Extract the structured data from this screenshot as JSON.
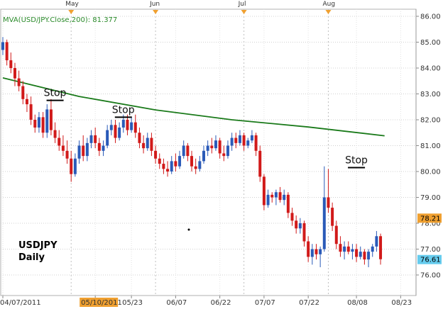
{
  "chart_data": {
    "type": "candlestick",
    "indicator_label": "MVA(USD/JPY.Close,200): 81.377",
    "ticker": "USDJPY",
    "timeframe": "Daily",
    "y_axis": {
      "min": 75.5,
      "max": 86.0,
      "ticks": [
        "76.00",
        "77.00",
        "78.00",
        "79.00",
        "80.00",
        "81.00",
        "82.00",
        "83.00",
        "84.00",
        "85.00",
        "86.00"
      ],
      "tick_values": [
        76,
        77,
        78,
        79,
        80,
        81,
        82,
        83,
        84,
        85,
        86
      ],
      "grid": true
    },
    "x_axis": {
      "labels": [
        "04/07/2011",
        "05/10/2011",
        "05/23",
        "06/07",
        "06/22",
        "07/07",
        "07/22",
        "08/08",
        "08/23"
      ],
      "label_positions": [
        0,
        23,
        32,
        43,
        54,
        65,
        76,
        88,
        99
      ],
      "highlighted_label": "05/10/2011"
    },
    "month_markers": [
      "May",
      "Jun",
      "Jul",
      "Aug"
    ],
    "month_marker_positions": [
      17,
      38,
      60,
      81
    ],
    "moving_average": {
      "name": "MVA(USD/JPY.Close,200)",
      "color": "#1a7a1a",
      "points": [
        [
          0,
          83.62
        ],
        [
          20,
          82.9
        ],
        [
          40,
          82.38
        ],
        [
          60,
          82.0
        ],
        [
          80,
          81.72
        ],
        [
          100,
          81.38
        ]
      ]
    },
    "price_tags": [
      {
        "value": 78.21,
        "label": "78.21",
        "color": "#f0a030"
      },
      {
        "value": 76.61,
        "label": "76.61",
        "color": "#66ccee"
      }
    ],
    "stops": [
      {
        "label": "Stop",
        "index": 13,
        "level": 82.75
      },
      {
        "label": "Stop",
        "index": 30,
        "level": 82.1
      },
      {
        "label": "Stop",
        "index": 88,
        "level": 80.15
      }
    ],
    "candles": [
      [
        84.7,
        85.2,
        84.5,
        85.0
      ],
      [
        85.0,
        85.1,
        84.1,
        84.3
      ],
      [
        84.3,
        84.6,
        83.8,
        84.0
      ],
      [
        84.0,
        84.2,
        83.3,
        83.6
      ],
      [
        83.6,
        83.9,
        83.1,
        83.3
      ],
      [
        83.3,
        83.5,
        82.6,
        82.8
      ],
      [
        82.8,
        83.0,
        82.3,
        82.6
      ],
      [
        82.6,
        82.9,
        81.8,
        82.0
      ],
      [
        82.0,
        82.2,
        81.5,
        81.7
      ],
      [
        81.7,
        82.3,
        81.5,
        82.1
      ],
      [
        82.1,
        82.3,
        81.3,
        81.5
      ],
      [
        81.5,
        82.6,
        81.3,
        82.4
      ],
      [
        82.4,
        82.8,
        81.4,
        81.6
      ],
      [
        81.6,
        81.9,
        81.1,
        81.3
      ],
      [
        81.3,
        81.6,
        80.8,
        81.0
      ],
      [
        81.0,
        81.4,
        80.6,
        80.8
      ],
      [
        80.8,
        81.2,
        80.3,
        80.5
      ],
      [
        80.5,
        80.8,
        79.6,
        79.9
      ],
      [
        79.9,
        80.7,
        79.8,
        80.5
      ],
      [
        80.5,
        81.2,
        80.3,
        81.0
      ],
      [
        81.0,
        81.4,
        80.4,
        80.6
      ],
      [
        80.6,
        81.3,
        80.4,
        81.1
      ],
      [
        81.1,
        81.6,
        80.9,
        81.4
      ],
      [
        81.4,
        81.7,
        80.9,
        81.1
      ],
      [
        81.1,
        81.3,
        80.6,
        80.8
      ],
      [
        80.8,
        81.2,
        80.6,
        81.0
      ],
      [
        81.0,
        81.8,
        80.9,
        81.6
      ],
      [
        81.6,
        82.0,
        81.4,
        81.8
      ],
      [
        81.8,
        82.0,
        81.1,
        81.3
      ],
      [
        81.3,
        81.9,
        81.2,
        81.7
      ],
      [
        81.7,
        82.2,
        81.5,
        82.0
      ],
      [
        82.0,
        82.2,
        81.4,
        81.6
      ],
      [
        81.6,
        82.1,
        81.5,
        81.9
      ],
      [
        81.9,
        82.2,
        81.3,
        81.5
      ],
      [
        81.5,
        81.7,
        80.9,
        81.1
      ],
      [
        81.1,
        81.4,
        80.7,
        80.9
      ],
      [
        80.9,
        81.5,
        80.8,
        81.3
      ],
      [
        81.3,
        81.5,
        80.6,
        80.8
      ],
      [
        80.8,
        81.0,
        80.3,
        80.5
      ],
      [
        80.5,
        80.7,
        80.1,
        80.3
      ],
      [
        80.3,
        80.5,
        79.9,
        80.1
      ],
      [
        80.1,
        80.4,
        79.8,
        80.0
      ],
      [
        80.0,
        80.6,
        79.9,
        80.4
      ],
      [
        80.4,
        80.7,
        80.0,
        80.2
      ],
      [
        80.2,
        80.8,
        80.1,
        80.6
      ],
      [
        80.6,
        81.2,
        80.5,
        81.0
      ],
      [
        81.0,
        81.1,
        80.4,
        80.6
      ],
      [
        80.6,
        80.8,
        80.0,
        80.2
      ],
      [
        80.2,
        80.5,
        79.9,
        80.1
      ],
      [
        80.1,
        80.6,
        80.0,
        80.4
      ],
      [
        80.4,
        81.0,
        80.3,
        80.8
      ],
      [
        80.8,
        81.2,
        80.6,
        81.0
      ],
      [
        81.0,
        81.3,
        80.7,
        80.9
      ],
      [
        80.9,
        81.4,
        80.8,
        81.2
      ],
      [
        81.2,
        81.3,
        80.5,
        80.7
      ],
      [
        80.7,
        81.0,
        80.4,
        80.6
      ],
      [
        80.6,
        81.2,
        80.5,
        81.0
      ],
      [
        81.0,
        81.5,
        80.8,
        81.3
      ],
      [
        81.3,
        81.5,
        80.9,
        81.1
      ],
      [
        81.1,
        81.6,
        81.0,
        81.4
      ],
      [
        81.4,
        81.5,
        80.8,
        81.0
      ],
      [
        81.0,
        81.3,
        80.9,
        81.2
      ],
      [
        81.2,
        81.6,
        81.1,
        81.4
      ],
      [
        81.4,
        81.5,
        80.6,
        80.8
      ],
      [
        80.8,
        81.0,
        79.6,
        79.8
      ],
      [
        79.8,
        79.9,
        78.5,
        78.7
      ],
      [
        78.7,
        79.3,
        78.6,
        79.1
      ],
      [
        79.1,
        79.2,
        78.8,
        79.0
      ],
      [
        79.0,
        79.3,
        78.7,
        79.2
      ],
      [
        79.2,
        79.4,
        78.8,
        78.9
      ],
      [
        78.9,
        79.3,
        78.7,
        79.1
      ],
      [
        79.1,
        79.2,
        78.2,
        78.4
      ],
      [
        78.4,
        78.6,
        77.9,
        78.1
      ],
      [
        78.1,
        78.3,
        77.6,
        77.8
      ],
      [
        77.8,
        78.2,
        77.6,
        78.0
      ],
      [
        78.0,
        78.1,
        77.1,
        77.3
      ],
      [
        77.3,
        77.5,
        76.5,
        76.7
      ],
      [
        76.7,
        77.2,
        76.4,
        77.0
      ],
      [
        77.0,
        77.2,
        76.6,
        76.8
      ],
      [
        76.8,
        77.1,
        76.3,
        77.0
      ],
      [
        77.0,
        80.2,
        76.9,
        79.0
      ],
      [
        79.0,
        80.1,
        78.4,
        78.6
      ],
      [
        78.6,
        78.8,
        77.7,
        77.9
      ],
      [
        77.9,
        78.1,
        77.0,
        77.2
      ],
      [
        77.2,
        77.5,
        76.7,
        76.9
      ],
      [
        76.9,
        77.3,
        76.6,
        77.1
      ],
      [
        77.1,
        77.3,
        76.8,
        76.9
      ],
      [
        76.9,
        77.2,
        76.6,
        77.0
      ],
      [
        77.0,
        77.2,
        76.5,
        76.7
      ],
      [
        76.7,
        77.1,
        76.6,
        76.9
      ],
      [
        76.9,
        77.0,
        76.4,
        76.6
      ],
      [
        76.6,
        77.0,
        76.3,
        76.9
      ],
      [
        76.9,
        77.2,
        76.7,
        77.1
      ],
      [
        77.1,
        77.7,
        76.9,
        77.5
      ],
      [
        77.5,
        77.6,
        76.4,
        76.61
      ]
    ]
  }
}
